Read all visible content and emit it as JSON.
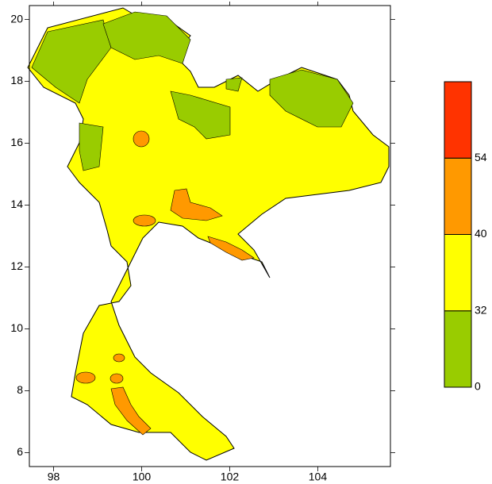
{
  "chart_data": {
    "type": "map",
    "xlim": [
      97.45,
      105.65
    ],
    "ylim": [
      5.55,
      20.45
    ],
    "xticks": [
      98,
      100,
      102,
      104
    ],
    "yticks": [
      6,
      8,
      10,
      12,
      14,
      16,
      18,
      20
    ],
    "colorbar": {
      "levels": [
        0,
        32,
        40,
        54
      ],
      "colors": [
        "#99cc00",
        "#ffff00",
        "#ff9900",
        "#ff3300"
      ]
    }
  }
}
